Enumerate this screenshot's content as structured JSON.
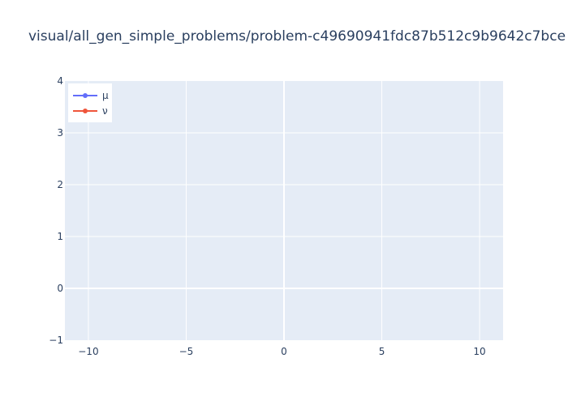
{
  "chart_data": {
    "type": "line",
    "title": "visual/all_gen_simple_problems/problem-c49690941fdc87b512c9b9642c7bce",
    "xlabel": "",
    "ylabel": "",
    "xlim": [
      -11.2,
      11.2
    ],
    "ylim": [
      -1,
      4
    ],
    "x_ticks": [
      -10,
      -5,
      0,
      5,
      10
    ],
    "x_tick_labels": [
      "−10",
      "−5",
      "0",
      "5",
      "10"
    ],
    "y_ticks": [
      -1,
      0,
      1,
      2,
      3,
      4
    ],
    "y_tick_labels": [
      "−1",
      "0",
      "1",
      "2",
      "3",
      "4"
    ],
    "grid": true,
    "legend_position": "top-left",
    "plot_background": "#e5ecf6",
    "grid_color": "#ffffff",
    "text_color": "#2a3f5f",
    "series": [
      {
        "name": "μ",
        "color": "#636efa",
        "x": [],
        "y": []
      },
      {
        "name": "ν",
        "color": "#ef553b",
        "x": [],
        "y": []
      }
    ]
  }
}
